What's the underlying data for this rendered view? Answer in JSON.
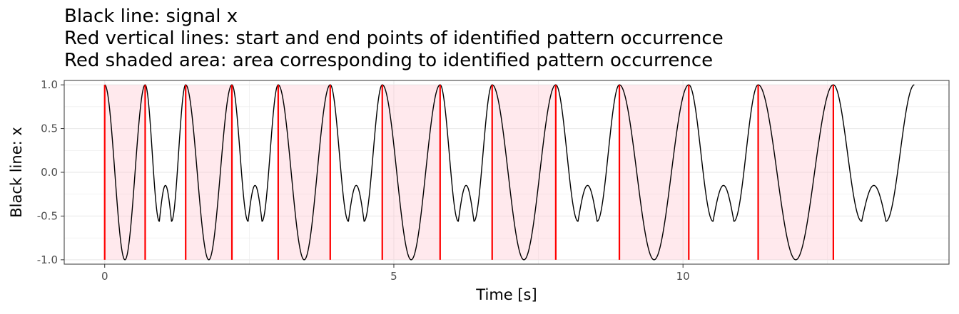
{
  "chart_data": {
    "type": "line",
    "title_lines": [
      "Black line: signal x",
      "Red vertical lines: start and end points of identified pattern occurrence",
      "Red shaded area: area corresponding to identified pattern occurrence"
    ],
    "xlabel": "Time [s]",
    "ylabel": "Black line: x",
    "xlim": [
      -0.7,
      14.6
    ],
    "ylim": [
      -1.05,
      1.05
    ],
    "x_ticks": [
      0,
      5,
      10
    ],
    "x_tick_labels": [
      "0",
      "5",
      "10"
    ],
    "y_ticks": [
      1.0,
      0.5,
      0.0,
      -0.5,
      -1.0
    ],
    "y_tick_labels": [
      "1.0",
      "0.5",
      "0.0",
      "-0.5",
      "-1.0"
    ],
    "grid": true,
    "theme": "white background, light grey grid, dark grey panel border",
    "colors": {
      "signal": "#000000",
      "boundary": "#ff0000",
      "shade": "#ffc0cb",
      "grid": "#ebebeb",
      "panel_border": "#333333"
    },
    "series": [
      {
        "name": "signal x",
        "color": "#000000",
        "segments": [
          {
            "kind": "pattern",
            "start": 0.0,
            "end": 0.7
          },
          {
            "kind": "gap",
            "start": 0.7,
            "end": 1.4
          },
          {
            "kind": "pattern",
            "start": 1.4,
            "end": 2.2
          },
          {
            "kind": "gap",
            "start": 2.2,
            "end": 3.0
          },
          {
            "kind": "pattern",
            "start": 3.0,
            "end": 3.9
          },
          {
            "kind": "gap",
            "start": 3.9,
            "end": 4.8
          },
          {
            "kind": "pattern",
            "start": 4.8,
            "end": 5.8
          },
          {
            "kind": "gap",
            "start": 5.8,
            "end": 6.7
          },
          {
            "kind": "pattern",
            "start": 6.7,
            "end": 7.8
          },
          {
            "kind": "gap",
            "start": 7.8,
            "end": 8.9
          },
          {
            "kind": "pattern",
            "start": 8.9,
            "end": 10.1
          },
          {
            "kind": "gap",
            "start": 10.1,
            "end": 11.3
          },
          {
            "kind": "pattern",
            "start": 11.3,
            "end": 12.6
          },
          {
            "kind": "gap",
            "start": 12.6,
            "end": 14.0
          }
        ],
        "gap_trough_value": -0.56,
        "gap_peak_value": -0.15
      }
    ],
    "pattern_occurrences": [
      {
        "start": 0.0,
        "end": 0.7
      },
      {
        "start": 1.4,
        "end": 2.2
      },
      {
        "start": 3.0,
        "end": 3.9
      },
      {
        "start": 4.8,
        "end": 5.8
      },
      {
        "start": 6.7,
        "end": 7.8
      },
      {
        "start": 8.9,
        "end": 10.1
      },
      {
        "start": 11.3,
        "end": 12.6
      }
    ]
  }
}
